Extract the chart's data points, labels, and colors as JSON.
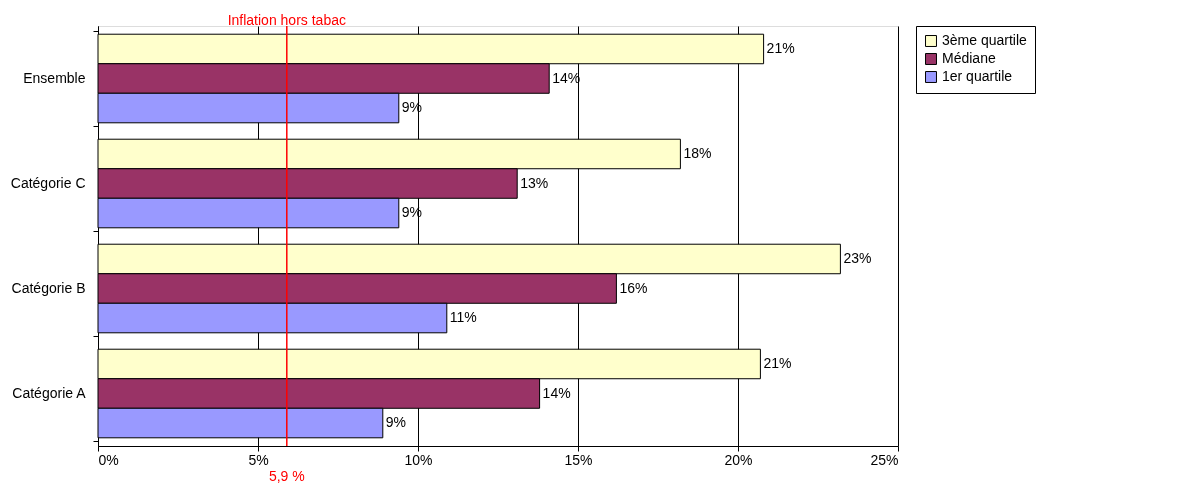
{
  "chart_data": {
    "type": "bar",
    "orientation": "horizontal",
    "categories": [
      "Ensemble",
      "Catégorie C",
      "Catégorie B",
      "Catégorie A"
    ],
    "series": [
      {
        "name": "3ème quartile",
        "color": "#ffffcc",
        "values": [
          20.8,
          18.2,
          23.2,
          20.7
        ],
        "value_labels": [
          "21%",
          "18%",
          "23%",
          "21%"
        ]
      },
      {
        "name": "Médiane",
        "color": "#993366",
        "values": [
          14.1,
          13.1,
          16.2,
          13.8
        ],
        "value_labels": [
          "14%",
          "13%",
          "16%",
          "14%"
        ]
      },
      {
        "name": "1er quartile",
        "color": "#9999ff",
        "values": [
          9.4,
          9.4,
          10.9,
          8.9
        ],
        "value_labels": [
          "9%",
          "9%",
          "11%",
          "9%"
        ]
      }
    ],
    "xlim": [
      0,
      25
    ],
    "xticks": [
      {
        "value": 0,
        "label": "0%"
      },
      {
        "value": 5,
        "label": "5%"
      },
      {
        "value": 10,
        "label": "10%"
      },
      {
        "value": 15,
        "label": "15%"
      },
      {
        "value": 20,
        "label": "20%"
      },
      {
        "value": 25,
        "label": "25%"
      }
    ],
    "grid": "x",
    "legend": "right",
    "ref_lines": [
      {
        "axis": "x",
        "value": 5.9,
        "label": "Inflation hors tabac",
        "color": "#ff0000"
      }
    ],
    "annotations": [
      "5,9 %"
    ]
  }
}
